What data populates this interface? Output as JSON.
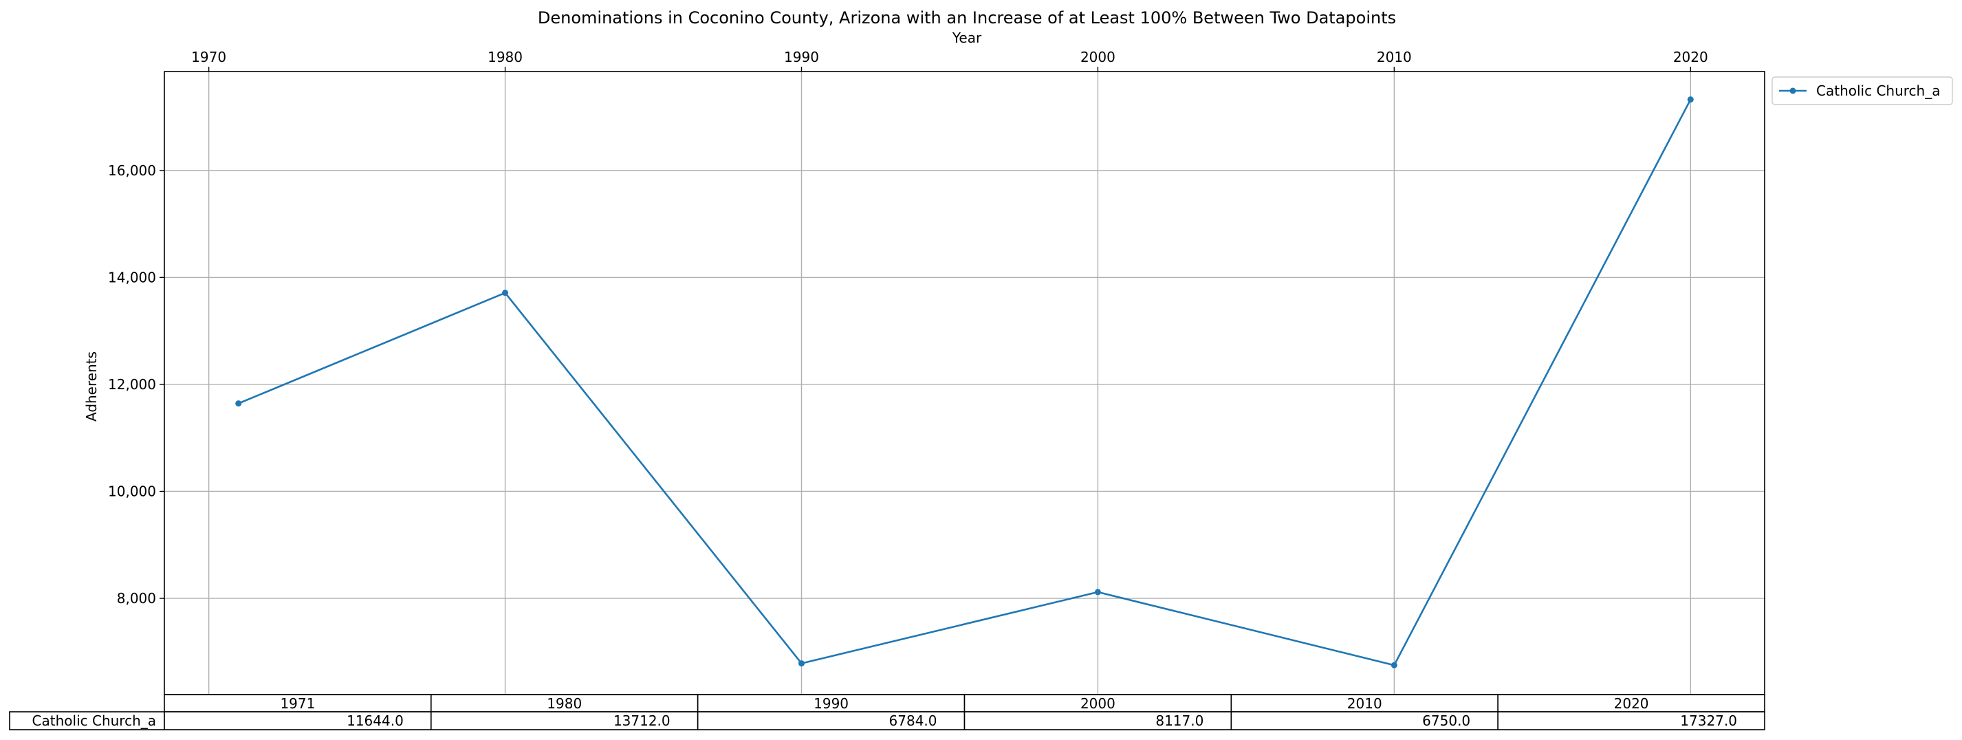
{
  "chart_data": {
    "type": "line",
    "title": "Denominations in Coconino County, Arizona with an Increase of at Least 100% Between Two Datapoints",
    "xlabel": "Year",
    "ylabel": "Adherents",
    "x_ticks": [
      "1970",
      "1980",
      "1990",
      "2000",
      "2010",
      "2020"
    ],
    "y_ticks": [
      "8,000",
      "10,000",
      "12,000",
      "14,000",
      "16,000"
    ],
    "x": [
      1971,
      1980,
      1990,
      2000,
      2010,
      2020
    ],
    "xlim": [
      1968.5,
      2022.5
    ],
    "ylim": [
      6200,
      17850
    ],
    "grid": true,
    "legend_position": "outside top-right",
    "series": [
      {
        "name": "Catholic Church_a",
        "color": "#1f77b4",
        "values": [
          11644,
          13712,
          6784,
          8117,
          6750,
          17327
        ]
      }
    ],
    "table": {
      "columns": [
        "1971",
        "1980",
        "1990",
        "2000",
        "2010",
        "2020"
      ],
      "rows": [
        {
          "label": "Catholic Church_a",
          "cells": [
            "11644.0",
            "13712.0",
            "6784.0",
            "8117.0",
            "6750.0",
            "17327.0"
          ]
        }
      ]
    }
  }
}
